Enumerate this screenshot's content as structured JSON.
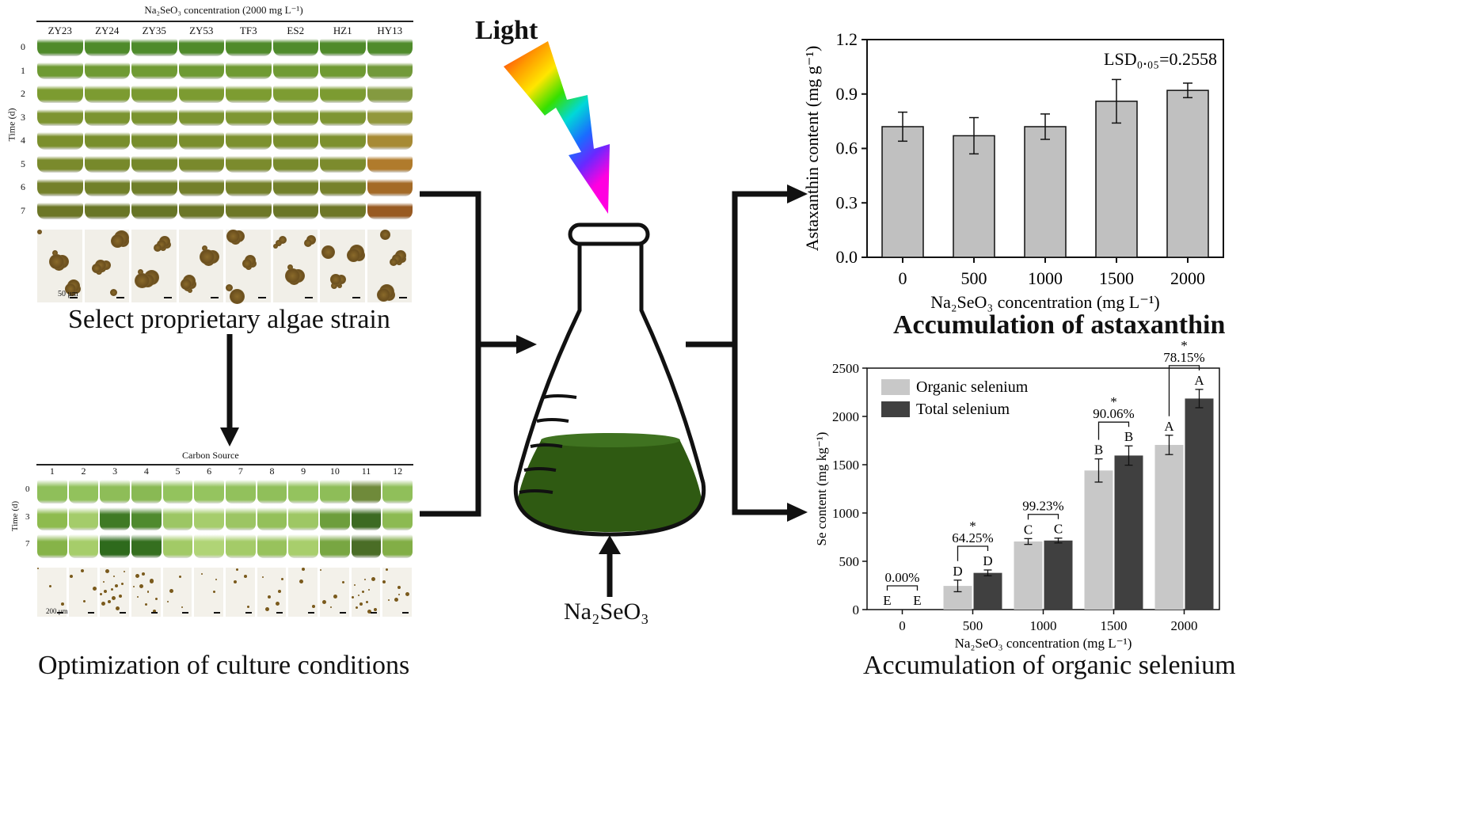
{
  "strain_panel": {
    "title": "Na₂SeO₃ concentration (2000 mg L⁻¹)",
    "strains": [
      "ZY23",
      "ZY24",
      "ZY35",
      "ZY53",
      "TF3",
      "ES2",
      "HZ1",
      "HY13"
    ],
    "time_label": "Time (d)",
    "days": [
      "0",
      "1",
      "2",
      "3",
      "4",
      "5",
      "6",
      "7"
    ],
    "scale_bar": "50 μm",
    "caption": "Select proprietary algae strain",
    "tube_colors": [
      [
        "#4f8a2a",
        "#4e8a2a",
        "#4e8b2b",
        "#4f8a2a",
        "#4f8a2a",
        "#4f8b2c",
        "#4f8a2a",
        "#4f8b2b"
      ],
      [
        "#6e9a32",
        "#6f9a33",
        "#709b33",
        "#6e9a33",
        "#6f9a32",
        "#709b34",
        "#6f9a32",
        "#72993a"
      ],
      [
        "#7c9b30",
        "#7c9b31",
        "#7a9a30",
        "#7c9b31",
        "#7d9c31",
        "#7d9c32",
        "#7c9b31",
        "#849a40"
      ],
      [
        "#7d9430",
        "#7b9430",
        "#7a932f",
        "#7c9431",
        "#7e9632",
        "#7c9531",
        "#7e9532",
        "#92983c"
      ],
      [
        "#7b8f2c",
        "#788e2c",
        "#778d2c",
        "#7a8e2d",
        "#7c902e",
        "#7a8f2d",
        "#7d902e",
        "#a78a34"
      ],
      [
        "#7a8a2c",
        "#77892b",
        "#75882b",
        "#79892c",
        "#7b8b2d",
        "#788a2c",
        "#7c8b2d",
        "#b07b2c"
      ],
      [
        "#74802a",
        "#718029",
        "#6f7e29",
        "#737f2a",
        "#75812b",
        "#72802a",
        "#76812b",
        "#a46a26"
      ],
      [
        "#6c7626",
        "#697626",
        "#677526",
        "#6b7627",
        "#6d7727",
        "#6a7627",
        "#6e7727",
        "#985a22"
      ]
    ]
  },
  "carbon_panel": {
    "title": "Carbon Source",
    "sources": [
      "1",
      "2",
      "3",
      "4",
      "5",
      "6",
      "7",
      "8",
      "9",
      "10",
      "11",
      "12"
    ],
    "time_label": "Time (d)",
    "days": [
      "0",
      "3",
      "7"
    ],
    "scale_bar": "200 μm",
    "caption": "Optimization of culture conditions",
    "tube_colors": [
      [
        "#8fbf5a",
        "#92c25c",
        "#8ebd58",
        "#89b954",
        "#93c35d",
        "#95c45f",
        "#92c15c",
        "#90bf5a",
        "#94c35e",
        "#8ebd58",
        "#6f8a3a",
        "#90bf5a"
      ],
      [
        "#8ebb4e",
        "#a4cc6a",
        "#3f7a24",
        "#4f8a2e",
        "#9cc664",
        "#a6cd6c",
        "#9cc563",
        "#94c05a",
        "#9ec764",
        "#6d9e3c",
        "#3c6a22",
        "#8cba52"
      ],
      [
        "#86b348",
        "#a6cd6a",
        "#2e6a1c",
        "#356f1f",
        "#a2ca66",
        "#b0d476",
        "#a4cb68",
        "#98c25c",
        "#a8ce6c",
        "#78a642",
        "#4a6d26",
        "#82ae46"
      ]
    ]
  },
  "flask": {
    "light_label": "Light",
    "reagent_label": "Na₂SeO₃",
    "culture_color": "#2f5a12"
  },
  "astaxanthin_chart": {
    "caption": "Accumulation of astaxanthin",
    "lsd": "LSD₀.₀₅=0.2558",
    "ylabel": "Astaxanthin content (mg g⁻¹)",
    "xlabel": "Na₂SeO₃ concentration (mg L⁻¹)",
    "yticks": [
      "0.0",
      "0.3",
      "0.6",
      "0.9",
      "1.2"
    ]
  },
  "selenium_chart": {
    "caption": "Accumulation of organic selenium",
    "ylabel": "Se content (mg kg⁻¹)",
    "xlabel": "Na₂SeO₃ concentration (mg L⁻¹)",
    "yticks": [
      "0",
      "500",
      "1000",
      "1500",
      "2000",
      "2500"
    ],
    "legend": [
      "Organic selenium",
      "Total selenium"
    ],
    "percents": [
      "0.00%",
      "64.25%",
      "99.23%",
      "90.06%",
      "78.15%"
    ],
    "colors": {
      "organic": "#c8c8c8",
      "total": "#404040"
    }
  },
  "chart_data": [
    {
      "type": "bar",
      "title": "Accumulation of astaxanthin",
      "xlabel": "Na₂SeO₃ concentration (mg L⁻¹)",
      "ylabel": "Astaxanthin content (mg g⁻¹)",
      "categories": [
        "0",
        "500",
        "1000",
        "1500",
        "2000"
      ],
      "values": [
        0.72,
        0.67,
        0.72,
        0.86,
        0.92
      ],
      "errors": [
        0.08,
        0.1,
        0.07,
        0.12,
        0.04
      ],
      "ylim": [
        0,
        1.2
      ],
      "annotations": [
        "LSD₀.₀₅=0.2558"
      ],
      "color": "#c0c0c0"
    },
    {
      "type": "bar",
      "title": "Accumulation of organic selenium",
      "xlabel": "Na₂SeO₃ concentration (mg L⁻¹)",
      "ylabel": "Se content (mg kg⁻¹)",
      "categories": [
        "0",
        "500",
        "1000",
        "1500",
        "2000"
      ],
      "series": [
        {
          "name": "Organic selenium",
          "values": [
            0,
            245,
            705,
            1440,
            1705
          ],
          "errors": [
            0,
            60,
            30,
            120,
            100
          ],
          "letters": [
            "E",
            "D",
            "C",
            "B",
            "A"
          ]
        },
        {
          "name": "Total selenium",
          "values": [
            0,
            380,
            715,
            1595,
            2185
          ],
          "errors": [
            0,
            30,
            25,
            100,
            95
          ],
          "letters": [
            "E",
            "D",
            "C",
            "B",
            "A"
          ]
        }
      ],
      "percent_labels": [
        "0.00%",
        "64.25%",
        "99.23%",
        "90.06%",
        "78.15%"
      ],
      "significance": [
        "",
        "*",
        "",
        "*",
        "*"
      ],
      "ylim": [
        0,
        2500
      ],
      "legend_position": "top-left"
    }
  ]
}
